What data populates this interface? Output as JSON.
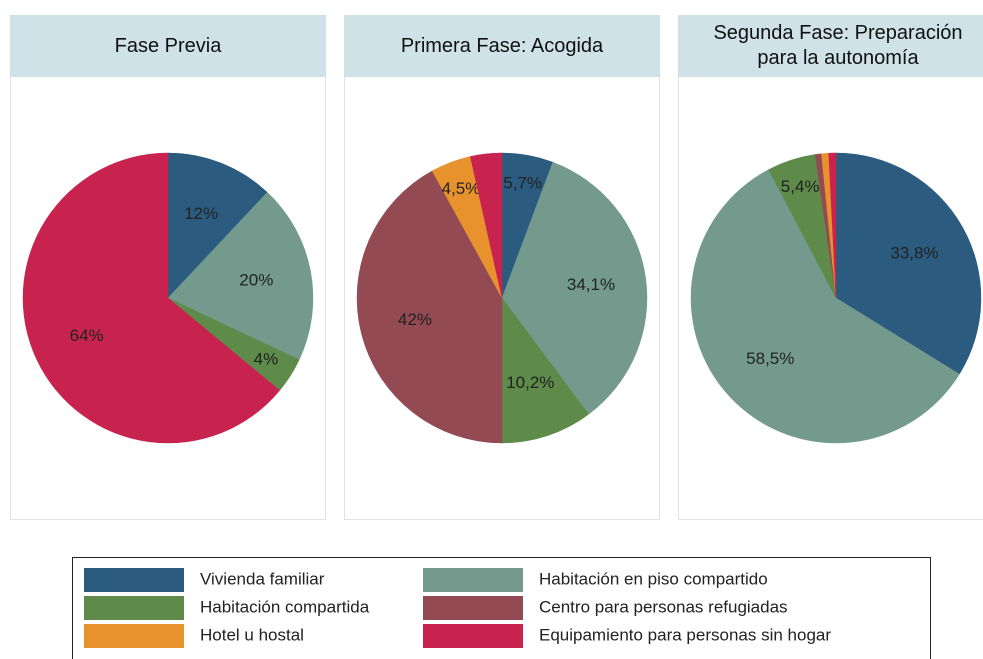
{
  "chart_data": [
    {
      "type": "pie",
      "title": "Fase Previa",
      "categories": [
        "Vivienda familiar",
        "Habitación en piso compartido",
        "Habitación compartida",
        "Centro para personas refugiadas",
        "Hotel u hostal",
        "Equipamiento para personas sin hogar"
      ],
      "values": [
        12,
        20,
        4,
        0,
        0,
        64
      ],
      "value_labels": [
        "12%",
        "20%",
        "4%",
        null,
        null,
        "64%"
      ],
      "colors": [
        "#2b5b7e",
        "#739a8c",
        "#5e8a4a",
        "#934a52",
        "#e8922e",
        "#c8224f"
      ]
    },
    {
      "type": "pie",
      "title": "Primera Fase: Acogida",
      "categories": [
        "Vivienda familiar",
        "Habitación en piso compartido",
        "Habitación compartida",
        "Centro para personas refugiadas",
        "Hotel u hostal",
        "Equipamiento para personas sin hogar"
      ],
      "values": [
        5.7,
        34.1,
        10.2,
        42,
        4.5,
        3.5
      ],
      "value_labels": [
        "5,7%",
        "34,1%",
        "10,2%",
        "42%",
        "4,5%",
        null
      ],
      "colors": [
        "#2b5b7e",
        "#739a8c",
        "#5e8a4a",
        "#934a52",
        "#e8922e",
        "#c8224f"
      ]
    },
    {
      "type": "pie",
      "title": "Segunda Fase: Preparación para la autonomía",
      "categories": [
        "Vivienda familiar",
        "Habitación en piso compartido",
        "Habitación compartida",
        "Centro para personas refugiadas",
        "Hotel u hostal",
        "Equipamiento para personas sin hogar"
      ],
      "values": [
        33.8,
        58.5,
        5.4,
        0.7,
        0.8,
        0.8
      ],
      "value_labels": [
        "33,8%",
        "58,5%",
        "5,4%",
        null,
        null,
        null
      ],
      "colors": [
        "#2b5b7e",
        "#739a8c",
        "#5e8a4a",
        "#934a52",
        "#e8922e",
        "#c8224f"
      ]
    }
  ]
}
